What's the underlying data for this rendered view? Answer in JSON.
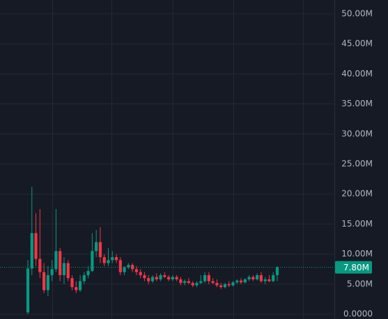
{
  "chart_data": {
    "type": "candlestick",
    "up_color": "#089981",
    "down_color": "#f23645",
    "open": [
      0.3,
      7.6,
      13.5,
      9.2,
      7.0,
      4.0,
      6.5,
      7.5,
      10.5,
      6.5,
      8.5,
      6.0,
      4.5,
      4.0,
      5.5,
      6.5,
      7.2,
      10.5,
      12.0,
      9.5,
      8.5,
      9.0,
      9.5,
      9.0,
      7.0,
      7.8,
      8.2,
      7.5,
      7.0,
      6.5,
      6.0,
      5.5,
      6.2,
      5.8,
      6.5,
      6.2,
      5.8,
      6.2,
      5.8,
      5.2,
      5.5,
      5.2,
      4.8,
      5.2,
      5.5,
      6.5,
      5.5,
      5.2,
      4.8,
      4.5,
      5.0,
      4.8,
      5.3,
      5.6,
      5.3,
      5.8,
      6.2,
      5.8,
      6.5,
      5.5,
      5.8,
      5.5,
      6.5
    ],
    "high": [
      9.0,
      21.2,
      16.8,
      17.5,
      8.5,
      8.0,
      9.0,
      17.5,
      11.0,
      9.5,
      9.0,
      6.5,
      5.5,
      6.5,
      7.0,
      8.0,
      13.5,
      14.0,
      14.5,
      10.0,
      11.0,
      10.5,
      10.0,
      9.5,
      8.0,
      8.5,
      8.5,
      8.0,
      7.5,
      7.0,
      6.5,
      6.5,
      6.8,
      6.8,
      7.0,
      6.5,
      6.5,
      6.5,
      6.2,
      5.8,
      6.0,
      5.5,
      5.5,
      6.5,
      7.0,
      7.0,
      6.0,
      5.8,
      5.2,
      5.2,
      5.5,
      5.5,
      5.8,
      6.0,
      6.0,
      6.5,
      6.5,
      6.8,
      7.0,
      6.2,
      6.5,
      7.0,
      8.0
    ],
    "low": [
      0.0,
      6.5,
      8.0,
      6.0,
      3.5,
      3.0,
      5.5,
      7.0,
      5.5,
      5.0,
      5.5,
      4.0,
      3.5,
      3.7,
      5.0,
      6.0,
      7.0,
      9.5,
      8.5,
      8.0,
      8.0,
      8.5,
      8.5,
      6.5,
      6.5,
      7.5,
      7.0,
      6.5,
      6.0,
      5.5,
      5.0,
      5.2,
      5.5,
      5.5,
      6.0,
      5.5,
      5.5,
      5.5,
      4.8,
      4.8,
      5.0,
      4.5,
      4.5,
      5.0,
      5.2,
      5.0,
      5.0,
      4.5,
      4.2,
      4.3,
      4.5,
      4.6,
      5.0,
      5.0,
      5.1,
      5.5,
      5.5,
      5.6,
      5.2,
      5.0,
      5.3,
      5.3,
      5.5
    ],
    "close": [
      7.6,
      13.5,
      9.2,
      7.0,
      4.0,
      6.5,
      7.5,
      10.5,
      6.5,
      8.5,
      6.0,
      4.5,
      4.0,
      5.5,
      6.5,
      7.2,
      10.5,
      12.0,
      9.5,
      8.5,
      9.0,
      9.5,
      9.0,
      7.0,
      7.8,
      8.2,
      7.5,
      7.0,
      6.5,
      6.0,
      5.5,
      6.2,
      5.8,
      6.5,
      6.2,
      5.8,
      6.2,
      5.8,
      5.2,
      5.5,
      5.2,
      4.8,
      5.2,
      5.5,
      6.5,
      5.5,
      5.2,
      4.8,
      4.5,
      5.0,
      4.8,
      5.3,
      5.6,
      5.3,
      5.8,
      6.2,
      5.8,
      6.5,
      5.5,
      5.8,
      5.5,
      6.5,
      7.8
    ],
    "ylim": [
      -0.8,
      52.3
    ],
    "yticks": [
      {
        "value": 0,
        "label": "0.0000"
      },
      {
        "value": 5,
        "label": "5.00M"
      },
      {
        "value": 10,
        "label": "10.00M"
      },
      {
        "value": 15,
        "label": "15.00M"
      },
      {
        "value": 20,
        "label": "20.00M"
      },
      {
        "value": 25,
        "label": "25.00M"
      },
      {
        "value": 30,
        "label": "30.00M"
      },
      {
        "value": 35,
        "label": "35.00M"
      },
      {
        "value": 40,
        "label": "40.00M"
      },
      {
        "value": 45,
        "label": "45.00M"
      },
      {
        "value": 50,
        "label": "50.00M"
      }
    ],
    "grid": true,
    "last_price": {
      "value": 7.8,
      "label": "7.80M",
      "color": "#089981"
    }
  }
}
